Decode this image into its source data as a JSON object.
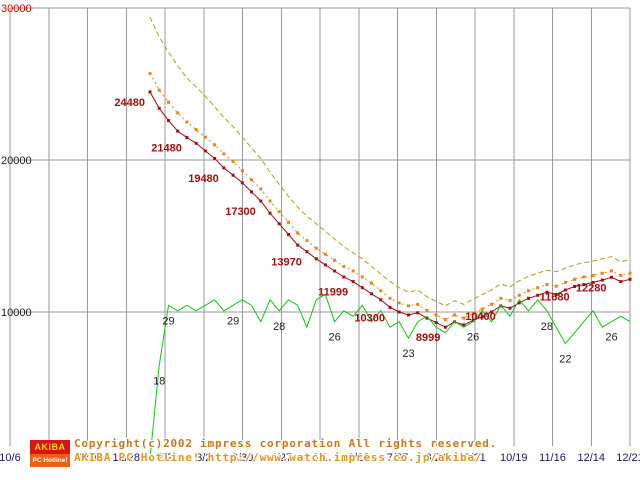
{
  "chart_data": {
    "type": "line",
    "x_tick_labels": [
      "10/6",
      "11/3",
      "12/1",
      "12/28",
      "2/2",
      "3/2",
      "3/30",
      "4/27",
      "6/1",
      "6/29",
      "7/27",
      "8/24",
      "9/21",
      "10/19",
      "11/16",
      "12/14",
      "12/21"
    ],
    "y_ticks": [
      {
        "value": 30000,
        "label": "30000",
        "color": "#cc0000"
      },
      {
        "value": 20000,
        "label": "20000",
        "color": "#202020"
      },
      {
        "value": 10000,
        "label": "10000",
        "color": "#202020"
      }
    ],
    "ylim": [
      0,
      30000
    ],
    "grid": true,
    "legend": "none",
    "series": [
      {
        "name": "highest-price",
        "color": "#a8a020",
        "dash": "5 3",
        "markers": false,
        "values": [
          29400,
          28100,
          27100,
          26200,
          25400,
          24800,
          24200,
          23500,
          22800,
          22200,
          21500,
          20800,
          20100,
          19200,
          18400,
          17600,
          16900,
          16300,
          15800,
          15300,
          14800,
          14300,
          13900,
          13500,
          13000,
          12500,
          12000,
          11600,
          11300,
          11450,
          11000,
          10700,
          10400,
          10750,
          10500,
          10850,
          11150,
          11450,
          11850,
          11650,
          12050,
          12350,
          12550,
          12750,
          12650,
          12900,
          13100,
          13250,
          13350,
          13500,
          13650,
          13300,
          13450
        ]
      },
      {
        "name": "average-price",
        "color": "#e08818",
        "dash": "2 3",
        "markers": true,
        "values": [
          25700,
          24600,
          23800,
          23100,
          22500,
          22000,
          21500,
          21000,
          20400,
          19900,
          19300,
          18700,
          18100,
          17300,
          16600,
          15900,
          15200,
          14700,
          14200,
          13800,
          13400,
          13000,
          12700,
          12300,
          11900,
          11400,
          10900,
          10600,
          10400,
          10500,
          10100,
          9800,
          9500,
          9800,
          9600,
          9900,
          10200,
          10500,
          10900,
          10750,
          11100,
          11400,
          11600,
          11800,
          11700,
          11950,
          12150,
          12300,
          12400,
          12550,
          12700,
          12400,
          12550
        ]
      },
      {
        "name": "lowest-price",
        "color": "#a01010",
        "dash": null,
        "markers": true,
        "values": [
          24480,
          23400,
          22600,
          21900,
          21480,
          21100,
          20600,
          20100,
          19480,
          19000,
          18500,
          17900,
          17300,
          16500,
          15800,
          15100,
          14400,
          13970,
          13500,
          13100,
          12700,
          12300,
          11999,
          11600,
          11200,
          10800,
          10300,
          10000,
          9800,
          9950,
          9600,
          9300,
          8999,
          9350,
          9150,
          9450,
          9700,
          10000,
          10400,
          10250,
          10600,
          10900,
          11100,
          11300,
          11150,
          11450,
          11680,
          11800,
          11950,
          12100,
          12280,
          12000,
          12150
        ]
      },
      {
        "name": "shop-count",
        "color": "#18c018",
        "dash": null,
        "markers": false,
        "scale": 360,
        "values": [
          1,
          18,
          29,
          28,
          29,
          28,
          29,
          30,
          28,
          29,
          30,
          29,
          26,
          30,
          28,
          30,
          29,
          25,
          30,
          31,
          26,
          28,
          27,
          29,
          26,
          28,
          25,
          26,
          23,
          26,
          27,
          25,
          24,
          26,
          25,
          26,
          28,
          26,
          29,
          27,
          30,
          28,
          30,
          28,
          25,
          22,
          24,
          26,
          28,
          25,
          26,
          27,
          26
        ]
      }
    ],
    "price_labels": [
      {
        "week": 0,
        "text": "24480"
      },
      {
        "week": 4,
        "text": "21480"
      },
      {
        "week": 8,
        "text": "19480"
      },
      {
        "week": 12,
        "text": "17300"
      },
      {
        "week": 17,
        "text": "13970"
      },
      {
        "week": 22,
        "text": "11999"
      },
      {
        "week": 26,
        "text": "10300"
      },
      {
        "week": 32,
        "text": "8999"
      },
      {
        "week": 38,
        "text": "10400"
      },
      {
        "week": 46,
        "text": "11680"
      },
      {
        "week": 50,
        "text": "12280"
      }
    ],
    "shop_labels": [
      {
        "week": 1,
        "text": "18"
      },
      {
        "week": 2,
        "text": "29"
      },
      {
        "week": 9,
        "text": "29"
      },
      {
        "week": 14,
        "text": "28"
      },
      {
        "week": 20,
        "text": "26"
      },
      {
        "week": 28,
        "text": "23"
      },
      {
        "week": 35,
        "text": "26"
      },
      {
        "week": 43,
        "text": "28"
      },
      {
        "week": 45,
        "text": "22"
      },
      {
        "week": 50,
        "text": "26"
      }
    ]
  },
  "footer": {
    "copyright_line1": "Copyright(c)2002 impress corporation All rights reserved.",
    "copyright_line2": "AKIBA PC Hotline! http://www.watch.impress.co.jp/akiba/",
    "logo": {
      "top": "AKIBA",
      "bottom": "PC Hotline!"
    }
  }
}
